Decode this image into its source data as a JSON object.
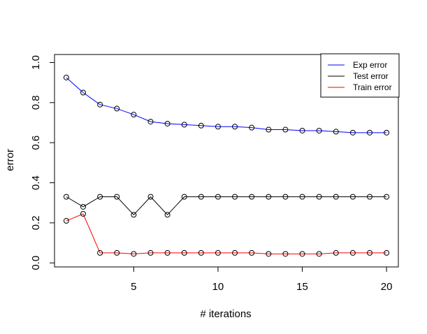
{
  "chart_data": {
    "type": "line",
    "xlabel": "# iterations",
    "ylabel": "error",
    "xlim": [
      0.3,
      20.7
    ],
    "ylim": [
      -0.02,
      1.04
    ],
    "x_ticks": [
      5,
      10,
      15,
      20
    ],
    "y_ticks": [
      0.0,
      0.2,
      0.4,
      0.6,
      0.8,
      1.0
    ],
    "y_tick_labels": [
      "0.0",
      "0.2",
      "0.4",
      "0.6",
      "0.8",
      "1.0"
    ],
    "grid": false,
    "legend_position": "top-right",
    "x": [
      1,
      2,
      3,
      4,
      5,
      6,
      7,
      8,
      9,
      10,
      11,
      12,
      13,
      14,
      15,
      16,
      17,
      18,
      19,
      20
    ],
    "series": [
      {
        "name": "Exp error",
        "color": "#0000ff",
        "values": [
          0.925,
          0.85,
          0.79,
          0.77,
          0.74,
          0.705,
          0.695,
          0.69,
          0.685,
          0.68,
          0.68,
          0.675,
          0.665,
          0.665,
          0.66,
          0.66,
          0.655,
          0.65,
          0.65,
          0.65
        ]
      },
      {
        "name": "Test error",
        "color": "#000000",
        "values": [
          0.33,
          0.28,
          0.33,
          0.33,
          0.24,
          0.33,
          0.24,
          0.33,
          0.33,
          0.33,
          0.33,
          0.33,
          0.33,
          0.33,
          0.33,
          0.33,
          0.33,
          0.33,
          0.33,
          0.33
        ]
      },
      {
        "name": "Train error",
        "color": "#ff0000",
        "values": [
          0.21,
          0.245,
          0.05,
          0.05,
          0.045,
          0.05,
          0.05,
          0.05,
          0.05,
          0.05,
          0.05,
          0.05,
          0.045,
          0.045,
          0.045,
          0.045,
          0.05,
          0.05,
          0.05,
          0.05
        ]
      }
    ]
  }
}
